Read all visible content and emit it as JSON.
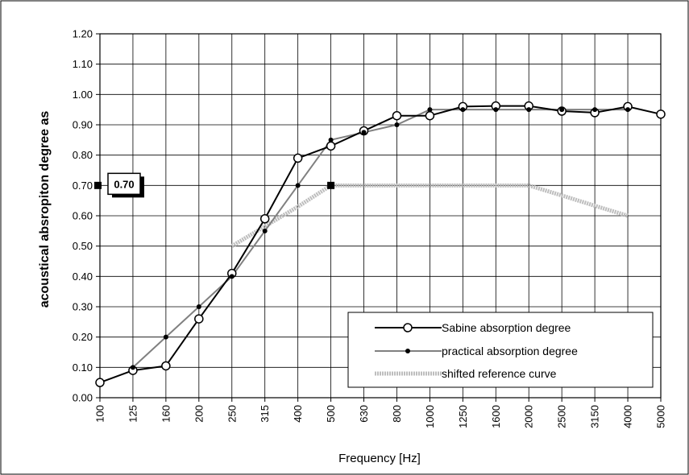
{
  "chart_data": {
    "type": "line",
    "title": "",
    "xlabel": "Frequency  [Hz]",
    "ylabel": "acoustical absropiton degree as",
    "ylim": [
      0,
      1.2
    ],
    "y_ticks": [
      "0.00",
      "0.10",
      "0.20",
      "0.30",
      "0.40",
      "0.50",
      "0.60",
      "0.70",
      "0.80",
      "0.90",
      "1.00",
      "1.10",
      "1.20"
    ],
    "categories": [
      "100",
      "125",
      "160",
      "200",
      "250",
      "315",
      "400",
      "500",
      "630",
      "800",
      "1000",
      "1250",
      "1600",
      "2000",
      "2500",
      "3150",
      "4000",
      "5000"
    ],
    "grid": true,
    "legend_position": "bottom-right",
    "series": [
      {
        "name": "Sabine absorption degree",
        "marker": "open-circle",
        "color": "#000000",
        "values": [
          0.05,
          0.09,
          0.105,
          0.26,
          0.41,
          0.59,
          0.79,
          0.83,
          0.88,
          0.93,
          0.93,
          0.96,
          0.962,
          0.962,
          0.945,
          0.94,
          0.96,
          0.935
        ]
      },
      {
        "name": "practical absorption degree",
        "marker": "dot",
        "color": "#808080",
        "values": [
          null,
          0.1,
          0.2,
          0.3,
          0.4,
          0.55,
          0.7,
          0.85,
          0.875,
          0.9,
          0.95,
          0.95,
          0.95,
          0.95,
          0.95,
          0.95,
          0.95,
          null
        ]
      },
      {
        "name": "shifted reference curve",
        "marker": "none",
        "color": "#bdbdbd",
        "values": [
          null,
          null,
          null,
          null,
          0.5,
          0.565,
          0.63,
          0.7,
          0.7,
          0.7,
          0.7,
          0.7,
          0.7,
          0.7,
          0.667,
          0.633,
          0.6,
          null
        ]
      }
    ],
    "annotations": [
      {
        "text": "0.70",
        "x": "100",
        "y": 0.7
      }
    ],
    "highlight_point": {
      "x": "500",
      "y": 0.7
    }
  }
}
